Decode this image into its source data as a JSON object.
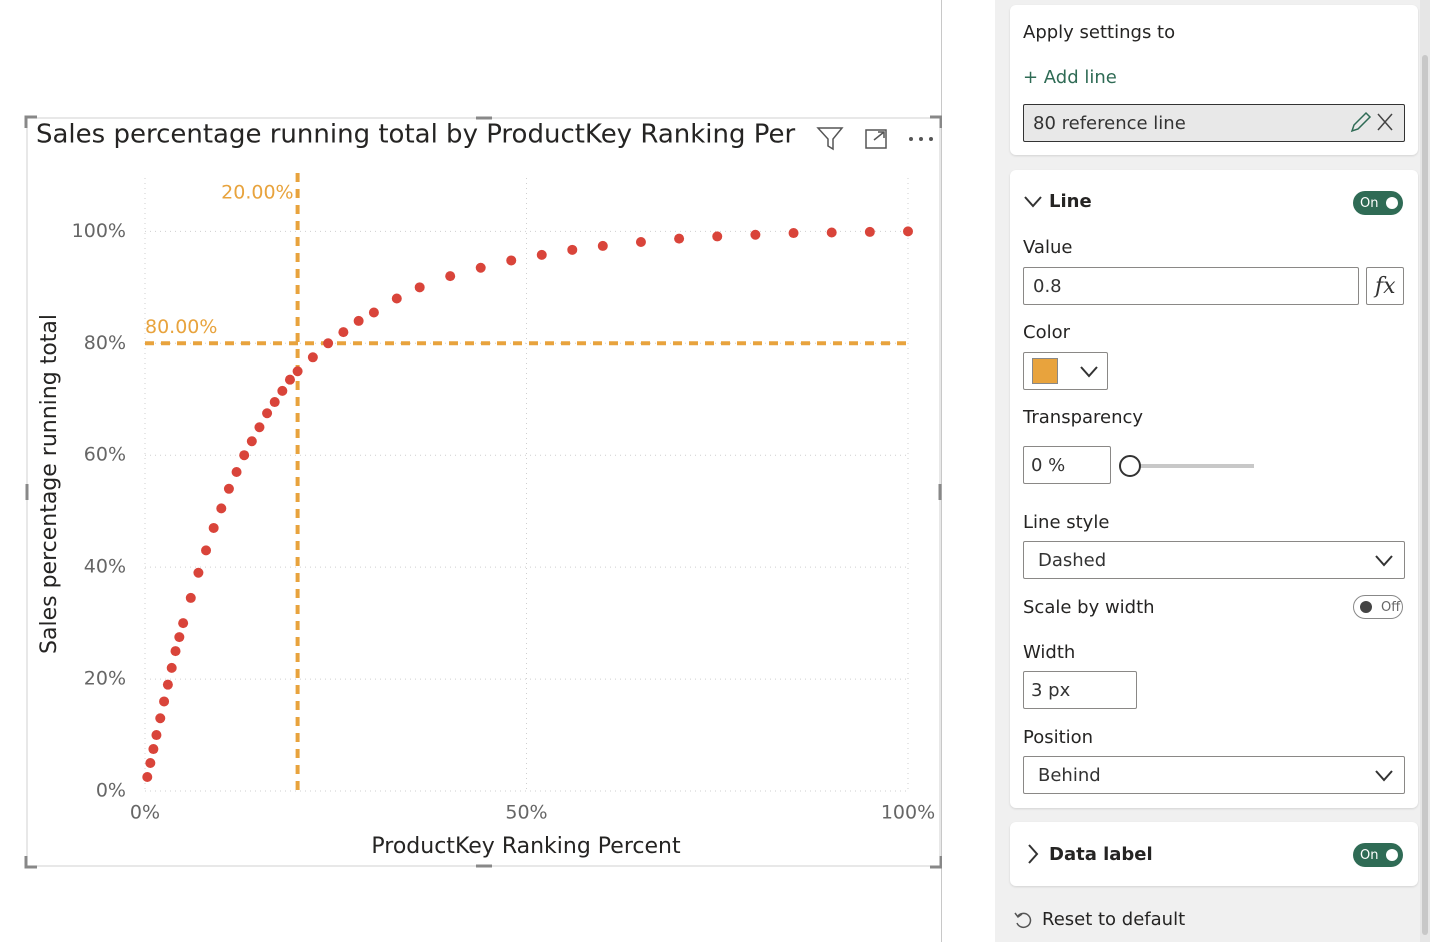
{
  "chart_data": {
    "type": "scatter",
    "title": "Sales percentage running total by ProductKey Ranking Per",
    "x_label": "ProductKey Ranking Percent",
    "y_label": "Sales percentage running total",
    "x": [
      0.3,
      0.7,
      1.1,
      1.5,
      2,
      2.5,
      3,
      3.5,
      4,
      4.5,
      5,
      6,
      7,
      8,
      9,
      10,
      11,
      12,
      13,
      14,
      15,
      16,
      17,
      18,
      19,
      20,
      22,
      24,
      26,
      28,
      30,
      33,
      36,
      40,
      44,
      48,
      52,
      56,
      60,
      65,
      70,
      75,
      80,
      85,
      90,
      95,
      100
    ],
    "values": [
      2.5,
      5,
      7.5,
      10,
      13,
      16,
      19,
      22,
      25,
      27.5,
      30,
      34.5,
      39,
      43,
      47,
      50.5,
      54,
      57,
      60,
      62.5,
      65,
      67.5,
      69.5,
      71.5,
      73.5,
      75,
      77.5,
      80,
      82,
      84,
      85.5,
      88,
      90,
      92,
      93.5,
      94.8,
      95.8,
      96.7,
      97.4,
      98.1,
      98.7,
      99.1,
      99.4,
      99.7,
      99.8,
      99.9,
      100
    ],
    "color": "#d9443a",
    "xlim": [
      0,
      100
    ],
    "ylim": [
      0,
      109
    ],
    "xticks": [
      {
        "value": 0,
        "label": "0%"
      },
      {
        "value": 50,
        "label": "50%"
      },
      {
        "value": 100,
        "label": "100%"
      }
    ],
    "yticks": [
      {
        "value": 0,
        "label": "0%"
      },
      {
        "value": 20,
        "label": "20%"
      },
      {
        "value": 40,
        "label": "40%"
      },
      {
        "value": 60,
        "label": "60%"
      },
      {
        "value": 80,
        "label": "80%"
      },
      {
        "value": 100,
        "label": "100%"
      }
    ],
    "grid": true,
    "reference_lines": [
      {
        "axis": "x",
        "value": 20,
        "label": "20.00%",
        "color": "#e8a33d"
      },
      {
        "axis": "y",
        "value": 80,
        "label": "80.00%",
        "color": "#e8a33d"
      }
    ]
  },
  "panel": {
    "apply_settings_to": "Apply settings to",
    "add_line": "+ Add line",
    "selected_line": "80 reference line",
    "line_section": {
      "title": "Line",
      "toggle": "On",
      "value_label": "Value",
      "value": "0.8",
      "fx": "fx",
      "color_label": "Color",
      "transparency_label": "Transparency",
      "transparency": "0 %",
      "line_style_label": "Line style",
      "line_style": "Dashed",
      "scale_by_width_label": "Scale by width",
      "scale_by_width": "Off",
      "width_label": "Width",
      "width": "3 px",
      "position_label": "Position",
      "position": "Behind"
    },
    "data_label": {
      "title": "Data label",
      "toggle": "On"
    },
    "reset": "Reset to default"
  }
}
